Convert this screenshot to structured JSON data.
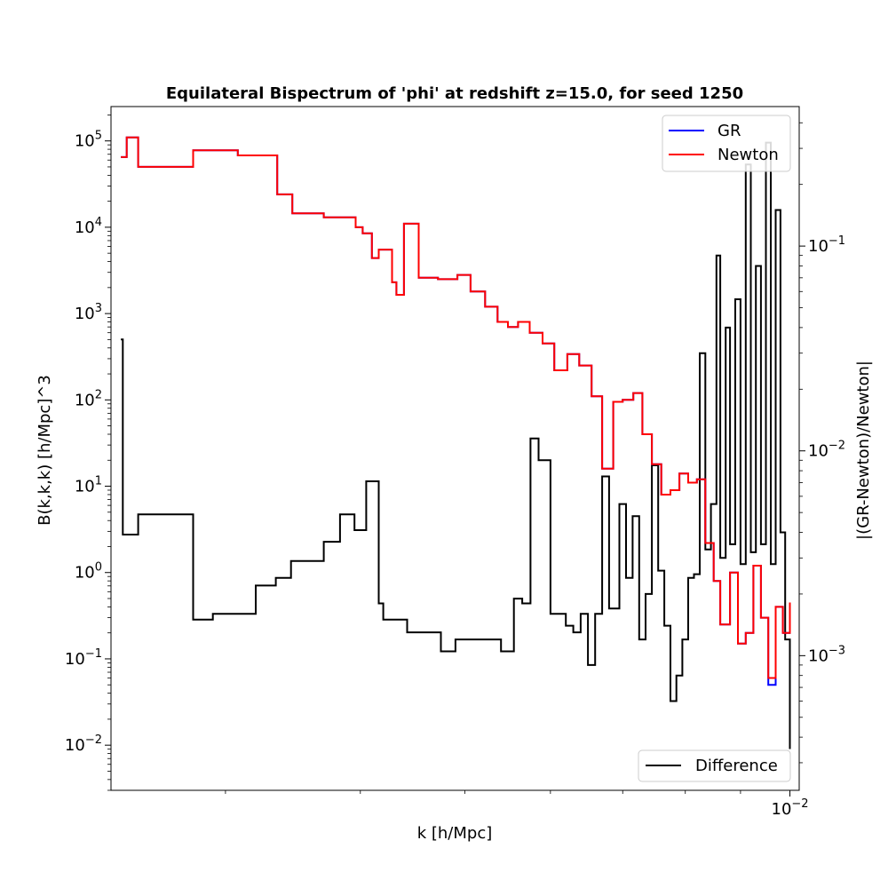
{
  "chart_data": {
    "type": "line",
    "title": "Equilateral Bispectrum of 'phi' at redshift z=15.0, for seed 1250",
    "xlabel": "k [h/Mpc]",
    "xscale": "log",
    "xlim": [
      0.00235,
      0.0102
    ],
    "xtick_label": {
      "base": "10",
      "exp": "−2"
    },
    "left_axis": {
      "label": "B(k,k,k) [h/Mpc]^3",
      "scale": "log",
      "ylim": [
        0.003,
        250000
      ],
      "ticks": [
        {
          "base": "10",
          "exp": "−2"
        },
        {
          "base": "10",
          "exp": "−1"
        },
        {
          "base": "10",
          "exp": "0"
        },
        {
          "base": "10",
          "exp": "1"
        },
        {
          "base": "10",
          "exp": "2"
        },
        {
          "base": "10",
          "exp": "3"
        },
        {
          "base": "10",
          "exp": "4"
        },
        {
          "base": "10",
          "exp": "5"
        }
      ]
    },
    "right_axis": {
      "label": "|(GR-Newton)/Newton|",
      "scale": "log",
      "ylim": [
        0.00022,
        0.48
      ],
      "ticks": [
        {
          "base": "10",
          "exp": "−3"
        },
        {
          "base": "10",
          "exp": "−2"
        },
        {
          "base": "10",
          "exp": "−1"
        }
      ]
    },
    "legend_upper": {
      "position": "top-right",
      "entries": [
        "GR",
        "Newton"
      ]
    },
    "legend_lower": {
      "position": "bottom-right",
      "entries": [
        "Difference"
      ]
    },
    "series": [
      {
        "name": "GR",
        "axis": "left",
        "color": "#0000ff",
        "x": [
          0.0024,
          0.00243,
          0.00249,
          0.0028,
          0.00308,
          0.00335,
          0.00346,
          0.0037,
          0.00396,
          0.00402,
          0.0041,
          0.00416,
          0.00428,
          0.00432,
          0.00439,
          0.00453,
          0.00472,
          0.00492,
          0.00506,
          0.00522,
          0.00536,
          0.00548,
          0.0056,
          0.00574,
          0.0059,
          0.00605,
          0.00622,
          0.00638,
          0.00655,
          0.0067,
          0.00686,
          0.007,
          0.00716,
          0.0073,
          0.00745,
          0.0076,
          0.00775,
          0.0079,
          0.00805,
          0.0082,
          0.00835,
          0.0085,
          0.00862,
          0.0088,
          0.00895,
          0.0091,
          0.00925,
          0.0094,
          0.00955,
          0.0097,
          0.00985,
          0.01
        ],
        "y": [
          65000,
          110000,
          50000,
          78000,
          68000,
          24000,
          14500,
          13000,
          10000,
          8500,
          4400,
          5500,
          2300,
          1650,
          11000,
          2600,
          2500,
          2800,
          1800,
          1200,
          800,
          700,
          800,
          600,
          450,
          220,
          340,
          250,
          110,
          16,
          95,
          100,
          120,
          40,
          18,
          8,
          9,
          14,
          11,
          12,
          2.2,
          0.8,
          0.25,
          1,
          0.15,
          0.2,
          1.2,
          0.3,
          0.05,
          0.4,
          0.2,
          0.45
        ]
      },
      {
        "name": "Newton",
        "axis": "left",
        "color": "#ff0000",
        "x": [
          0.0024,
          0.00243,
          0.00249,
          0.0028,
          0.00308,
          0.00335,
          0.00346,
          0.0037,
          0.00396,
          0.00402,
          0.0041,
          0.00416,
          0.00428,
          0.00432,
          0.00439,
          0.00453,
          0.00472,
          0.00492,
          0.00506,
          0.00522,
          0.00536,
          0.00548,
          0.0056,
          0.00574,
          0.0059,
          0.00605,
          0.00622,
          0.00638,
          0.00655,
          0.0067,
          0.00686,
          0.007,
          0.00716,
          0.0073,
          0.00745,
          0.0076,
          0.00775,
          0.0079,
          0.00805,
          0.0082,
          0.00835,
          0.0085,
          0.00862,
          0.0088,
          0.00895,
          0.0091,
          0.00925,
          0.0094,
          0.00955,
          0.0097,
          0.00985,
          0.01
        ],
        "y": [
          65000,
          110000,
          50000,
          78000,
          68000,
          24000,
          14500,
          13000,
          10000,
          8500,
          4400,
          5500,
          2300,
          1650,
          11000,
          2600,
          2500,
          2800,
          1800,
          1200,
          800,
          700,
          800,
          600,
          450,
          220,
          340,
          250,
          110,
          16,
          95,
          100,
          120,
          40,
          18,
          8,
          9,
          14,
          11,
          12,
          2.2,
          0.8,
          0.25,
          1,
          0.15,
          0.2,
          1.2,
          0.3,
          0.06,
          0.4,
          0.2,
          0.45
        ]
      },
      {
        "name": "Difference",
        "axis": "right",
        "color": "#000000",
        "x": [
          0.0024,
          0.00241,
          0.00249,
          0.0028,
          0.00292,
          0.0032,
          0.00334,
          0.00345,
          0.0037,
          0.00383,
          0.00395,
          0.00405,
          0.00416,
          0.0042,
          0.00428,
          0.00442,
          0.00455,
          0.00475,
          0.0049,
          0.0051,
          0.00522,
          0.0054,
          0.00555,
          0.00565,
          0.00575,
          0.00585,
          0.006,
          0.0062,
          0.0063,
          0.0064,
          0.0065,
          0.0066,
          0.0067,
          0.0068,
          0.00695,
          0.00705,
          0.00715,
          0.00725,
          0.00735,
          0.00745,
          0.00755,
          0.00765,
          0.00775,
          0.00785,
          0.00795,
          0.00805,
          0.00815,
          0.00825,
          0.00835,
          0.00845,
          0.00855,
          0.00862,
          0.00872,
          0.0088,
          0.0089,
          0.009,
          0.0091,
          0.0092,
          0.0093,
          0.0094,
          0.0095,
          0.0096,
          0.0097,
          0.0098,
          0.0099,
          0.01
        ],
        "y": [
          0.035,
          0.0039,
          0.0049,
          0.0015,
          0.0016,
          0.0022,
          0.0024,
          0.0029,
          0.0036,
          0.0049,
          0.0041,
          0.0071,
          0.0018,
          0.0015,
          0.0015,
          0.0013,
          0.0013,
          0.00105,
          0.0012,
          0.0012,
          0.0012,
          0.00105,
          0.0019,
          0.0018,
          0.0115,
          0.009,
          0.0016,
          0.0014,
          0.0013,
          0.0016,
          0.0009,
          0.0016,
          0.0075,
          0.0017,
          0.0055,
          0.0024,
          0.0048,
          0.0012,
          0.002,
          0.0085,
          0.0026,
          0.0014,
          0.0006,
          0.0008,
          0.0012,
          0.0024,
          0.0025,
          0.03,
          0.0033,
          0.0055,
          0.09,
          0.003,
          0.04,
          0.0035,
          0.055,
          0.0028,
          0.25,
          0.0032,
          0.08,
          0.0035,
          0.32,
          0.0028,
          0.15,
          0.004,
          0.0012,
          0.00035
        ]
      }
    ]
  }
}
